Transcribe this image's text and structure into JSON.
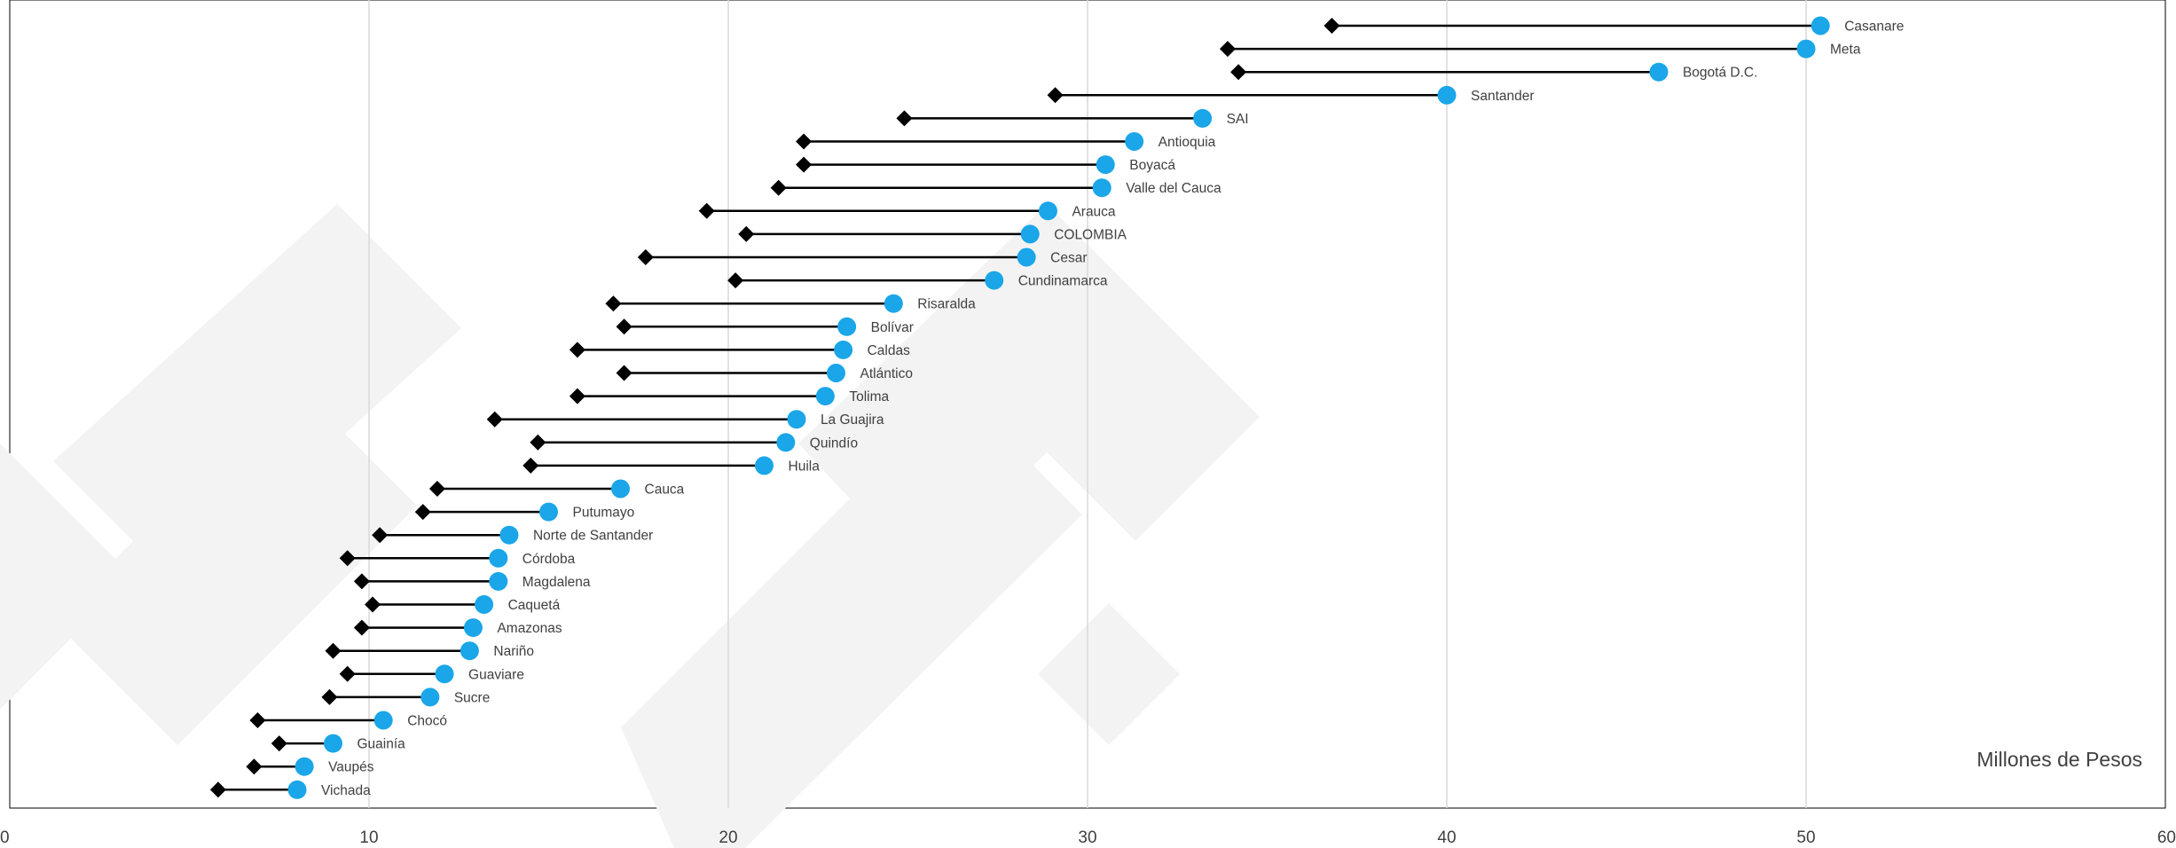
{
  "chart_data": {
    "type": "dumbbell",
    "title": "",
    "unit_label": "Millones de Pesos",
    "xlabel": "",
    "ylabel": "",
    "xlim": [
      0,
      60
    ],
    "x_ticks": [
      0,
      10,
      20,
      30,
      40,
      50,
      60
    ],
    "grid": true,
    "colors": {
      "start_marker": "#000000",
      "end_marker": "#1aa6e8",
      "connector": "#000000",
      "grid": "#d9d9d9"
    },
    "series": [
      {
        "name": "",
        "marker": "diamond"
      },
      {
        "name": "",
        "marker": "circle"
      }
    ],
    "categories": [
      "Casanare",
      "Meta",
      "Bogotá D.C.",
      "Santander",
      "SAI",
      "Antioquia",
      "Boyacá",
      "Valle del Cauca",
      "Arauca",
      "COLOMBIA",
      "Cesar",
      "Cundinamarca",
      "Risaralda",
      "Bolívar",
      "Caldas",
      "Atlántico",
      "Tolima",
      "La Guajira",
      "Quindío",
      "Huila",
      "Cauca",
      "Putumayo",
      "Norte de Santander",
      "Córdoba",
      "Magdalena",
      "Caquetá",
      "Amazonas",
      "Nariño",
      "Guaviare",
      "Sucre",
      "Chocó",
      "Guainía",
      "Vaupés",
      "Vichada"
    ],
    "start_values": [
      36.8,
      33.9,
      34.2,
      29.1,
      24.9,
      22.1,
      22.1,
      21.4,
      19.4,
      20.5,
      17.7,
      20.2,
      16.8,
      17.1,
      15.8,
      17.1,
      15.8,
      13.5,
      14.7,
      14.5,
      11.9,
      11.5,
      10.3,
      9.4,
      9.8,
      10.1,
      9.8,
      9.0,
      9.4,
      8.9,
      6.9,
      7.5,
      6.8,
      5.8
    ],
    "end_values": [
      50.4,
      50.0,
      45.9,
      40.0,
      33.2,
      31.3,
      30.5,
      30.4,
      28.9,
      28.4,
      28.3,
      27.4,
      24.6,
      23.3,
      23.2,
      23.0,
      22.7,
      21.9,
      21.6,
      21.0,
      17.0,
      15.0,
      13.9,
      13.6,
      13.6,
      13.2,
      12.9,
      12.8,
      12.1,
      11.7,
      10.4,
      9.0,
      8.2,
      8.0
    ]
  }
}
